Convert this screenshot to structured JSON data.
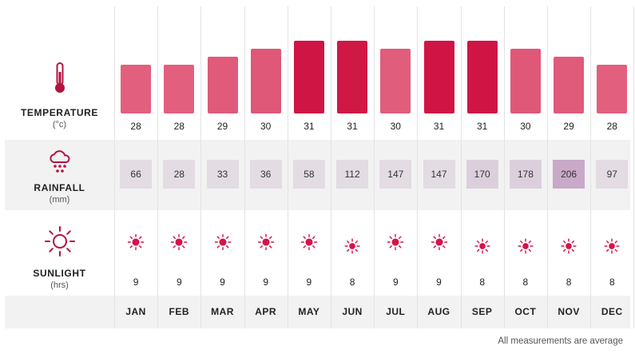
{
  "chart_data": {
    "type": "table",
    "months": [
      "JAN",
      "FEB",
      "MAR",
      "APR",
      "MAY",
      "JUN",
      "JUL",
      "AUG",
      "SEP",
      "OCT",
      "NOV",
      "DEC"
    ],
    "rows": [
      {
        "label": "TEMPERATURE",
        "unit": "(°c)",
        "icon": "thermometer-icon",
        "values": [
          28,
          28,
          29,
          30,
          31,
          31,
          30,
          31,
          31,
          30,
          29,
          28
        ],
        "colors": [
          "#e2607e",
          "#e2607e",
          "#e05a79",
          "#df5877",
          "#cf1543",
          "#d01845",
          "#e05d7b",
          "#d01545",
          "#d01545",
          "#df5877",
          "#e05a79",
          "#e2607e"
        ]
      },
      {
        "label": "RAINFALL",
        "unit": "(mm)",
        "icon": "rain-cloud-icon",
        "values": [
          66,
          28,
          33,
          36,
          58,
          112,
          147,
          147,
          170,
          178,
          206,
          97
        ],
        "colors": [
          "#e3dce3",
          "#e3dce3",
          "#e3dce3",
          "#e3dce3",
          "#e3dce3",
          "#e3dce3",
          "#e3dce3",
          "#e3dce3",
          "#dccfdc",
          "#dccfdc",
          "#c8a9c8",
          "#e3dce3"
        ]
      },
      {
        "label": "SUNLIGHT",
        "unit": "(hrs)",
        "icon": "sun-icon",
        "values": [
          9,
          9,
          9,
          9,
          9,
          8,
          9,
          9,
          8,
          8,
          8,
          8
        ]
      }
    ],
    "footnote": "All measurements are average",
    "accent": "#d4144a"
  }
}
